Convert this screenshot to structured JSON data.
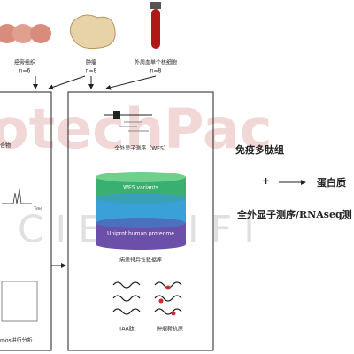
{
  "samples": [
    {
      "label": "癌旁组织",
      "n": "n=6"
    },
    {
      "label": "肿瘤",
      "n": "n=8"
    },
    {
      "label": "外周血单个核细胞",
      "n": "n=8"
    }
  ],
  "left_panel": {
    "compound": "合物",
    "axis": "Time",
    "analysis": "mos进行分析"
  },
  "middle_panel": {
    "wes": "全外显子测序（WES）",
    "layers": [
      "WES variants",
      "Uniprot human proteome"
    ],
    "database": "病患特异性数据库",
    "outputs": [
      "TAA肽",
      "肿瘤新抗原"
    ]
  },
  "right_panel": {
    "immunopeptidome": "免疫多肽组",
    "plus": "+",
    "proteome": "蛋白质",
    "sequencing": "全外显子测序/RNAseq测"
  },
  "watermark": {
    "brand": "otechPac",
    "sub": "C I E N T I F I"
  }
}
